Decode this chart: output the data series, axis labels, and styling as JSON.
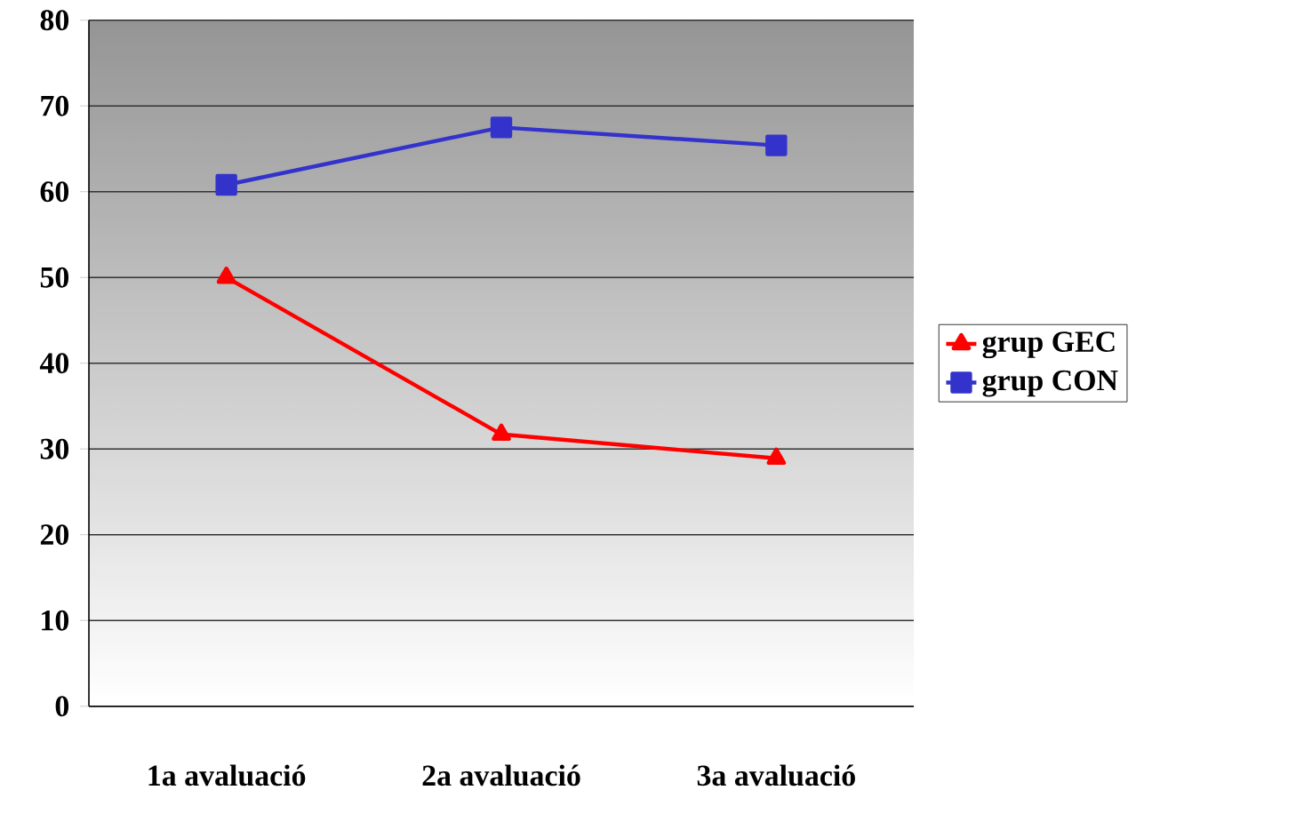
{
  "chart_data": {
    "type": "line",
    "categories": [
      "1a avaluació",
      "2a avaluació",
      "3a avaluació"
    ],
    "series": [
      {
        "name": "grup GEC",
        "color": "#ff0000",
        "marker": "triangle",
        "values": [
          50,
          31.7,
          28.9
        ]
      },
      {
        "name": "grup CON",
        "color": "#3333cc",
        "marker": "square",
        "values": [
          60.8,
          67.5,
          65.4
        ]
      }
    ],
    "ylim": [
      0,
      80
    ],
    "yticks": [
      0,
      10,
      20,
      30,
      40,
      50,
      60,
      70,
      80
    ],
    "grid": "y",
    "legend": "right",
    "line_style": "solid"
  }
}
